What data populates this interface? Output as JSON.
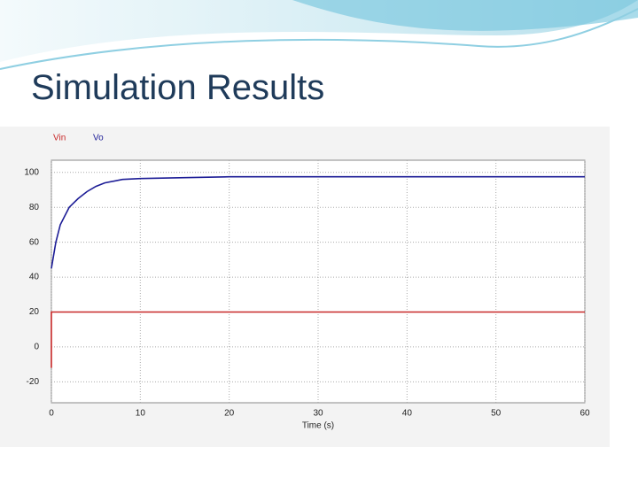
{
  "title": "Simulation Results",
  "chart_data": {
    "type": "line",
    "x_label": "Time (s)",
    "xlim": [
      0,
      60
    ],
    "xticks": [
      0,
      10,
      20,
      30,
      40,
      50,
      60
    ],
    "ylim": [
      -32,
      107
    ],
    "yticks": [
      -20,
      0,
      20,
      40,
      60,
      80,
      100
    ],
    "grid": true,
    "series": [
      {
        "name": "Vin",
        "color": "#c82828",
        "x": [
          0,
          0,
          60
        ],
        "values": [
          -12,
          20,
          20
        ]
      },
      {
        "name": "Vo",
        "color": "#1c1c96",
        "x": [
          0,
          0.5,
          1,
          2,
          3,
          4,
          5,
          6,
          8,
          10,
          15,
          20,
          30,
          40,
          50,
          60
        ],
        "values": [
          45,
          60,
          70,
          80,
          85,
          89,
          92,
          94,
          96,
          96.5,
          97,
          97.5,
          97.5,
          97.5,
          97.5,
          97.5
        ]
      }
    ]
  }
}
